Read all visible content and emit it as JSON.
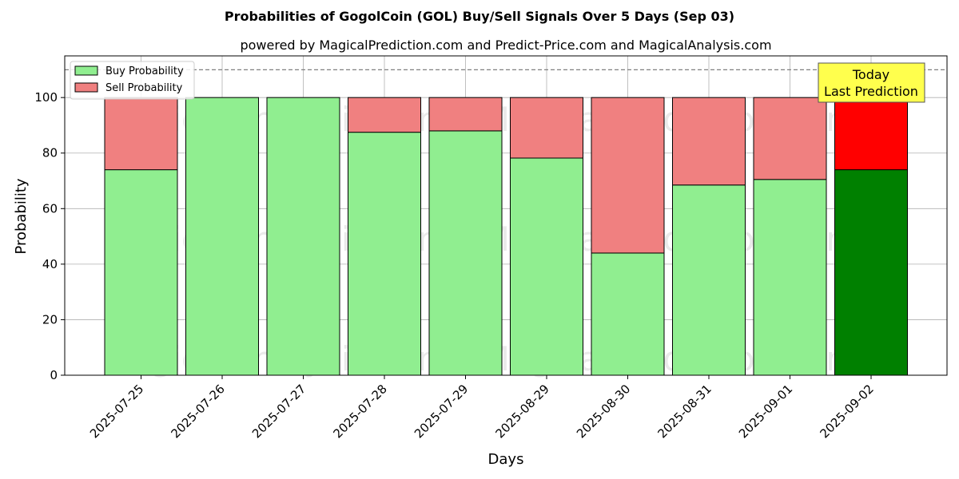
{
  "chart_data": {
    "type": "bar",
    "stacked": true,
    "title": "Probabilities of GogolCoin (GOL) Buy/Sell Signals Over 5 Days (Sep 03)",
    "subtitle": "powered by MagicalPrediction.com and Predict-Price.com and MagicalAnalysis.com",
    "xlabel": "Days",
    "ylabel": "Probability",
    "ylim": [
      0,
      115
    ],
    "yticks": [
      0,
      20,
      40,
      60,
      80,
      100
    ],
    "grid": true,
    "legend_position": "top-left",
    "reference_line": 110,
    "categories": [
      "2025-07-25",
      "2025-07-26",
      "2025-07-27",
      "2025-07-28",
      "2025-07-29",
      "2025-08-29",
      "2025-08-30",
      "2025-08-31",
      "2025-09-01",
      "2025-09-02"
    ],
    "series": [
      {
        "name": "Buy Probability",
        "values": [
          74,
          100,
          100,
          87.5,
          88,
          78.2,
          44,
          68.5,
          70.5,
          74
        ],
        "color": "#90ee90",
        "highlight_color": "#008000"
      },
      {
        "name": "Sell Probability",
        "values": [
          26,
          0,
          0,
          12.5,
          12,
          21.8,
          56,
          31.5,
          29.5,
          26
        ],
        "color": "#f08080",
        "highlight_color": "#ff0000"
      }
    ],
    "highlight_index": 9,
    "annotation": {
      "line1": "Today",
      "line2": "Last Prediction",
      "background": "#ffff4d"
    },
    "watermarks": [
      "MagicalAnalysis.com",
      "MagicalPrediction.com"
    ]
  }
}
